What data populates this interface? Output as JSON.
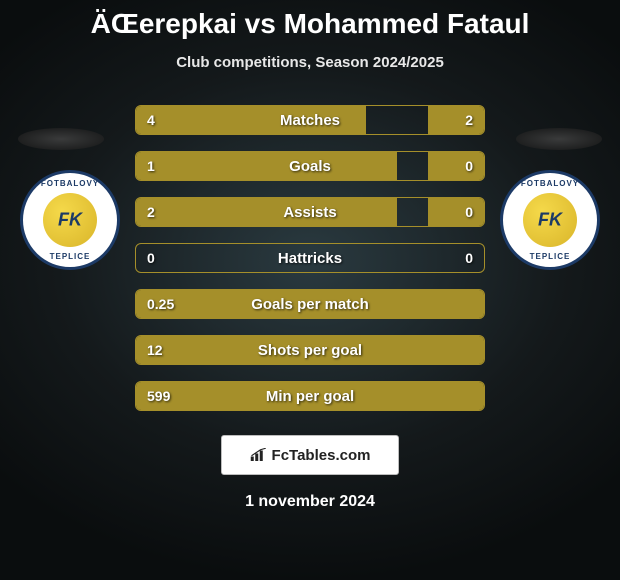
{
  "title": "ÄŒerepkai vs Mohammed Fataul",
  "subtitle": "Club competitions, Season 2024/2025",
  "date": "1 november 2024",
  "brand": {
    "label": "FcTables.com"
  },
  "colors": {
    "bar_fill": "#a58f2a",
    "bar_border": "#a58f2a",
    "text": "#ffffff",
    "bg_center": "#2a3a40",
    "bg_edge": "#0a0d0e",
    "crest_border": "#1c3a66",
    "crest_ball": "#e8c93a"
  },
  "crest": {
    "top_text": "FOTBALOVÝ",
    "bot_text": "TEPLICE",
    "center": "FK"
  },
  "stats": [
    {
      "label": "Matches",
      "left_val": "4",
      "right_val": "2",
      "left_pct": 66,
      "right_pct": 16
    },
    {
      "label": "Goals",
      "left_val": "1",
      "right_val": "0",
      "left_pct": 75,
      "right_pct": 16
    },
    {
      "label": "Assists",
      "left_val": "2",
      "right_val": "0",
      "left_pct": 75,
      "right_pct": 16
    },
    {
      "label": "Hattricks",
      "left_val": "0",
      "right_val": "0",
      "left_pct": 0,
      "right_pct": 0
    },
    {
      "label": "Goals per match",
      "left_val": "0.25",
      "right_val": "",
      "left_pct": 100,
      "right_pct": 0
    },
    {
      "label": "Shots per goal",
      "left_val": "12",
      "right_val": "",
      "left_pct": 100,
      "right_pct": 0
    },
    {
      "label": "Min per goal",
      "left_val": "599",
      "right_val": "",
      "left_pct": 100,
      "right_pct": 0
    }
  ]
}
